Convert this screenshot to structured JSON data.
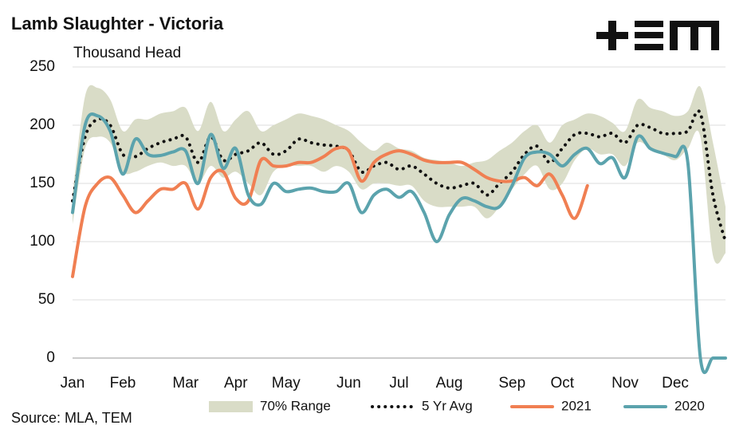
{
  "chart_data": {
    "type": "line",
    "title": "Lamb Slaughter - Victoria",
    "subtitle": "Thousand Head",
    "source": "Source: MLA, TEM",
    "categories": [
      "Jan",
      null,
      null,
      null,
      "Feb",
      null,
      null,
      null,
      null,
      "Mar",
      null,
      null,
      null,
      "Apr",
      null,
      null,
      null,
      "May",
      null,
      null,
      null,
      null,
      "Jun",
      null,
      null,
      null,
      "Jul",
      null,
      null,
      null,
      "Aug",
      null,
      null,
      null,
      null,
      "Sep",
      null,
      null,
      null,
      "Oct",
      null,
      null,
      null,
      null,
      "Nov",
      null,
      null,
      null,
      "Dec",
      null,
      null,
      null,
      null
    ],
    "ylim": [
      0,
      250
    ],
    "yticks": [
      0,
      50,
      100,
      150,
      200,
      250
    ],
    "grid": true,
    "legend": "bottom",
    "series": [
      {
        "name": "70% Range",
        "color": "#d9dcc7",
        "style": "band",
        "low": [
          115,
          180,
          190,
          185,
          160,
          160,
          165,
          168,
          165,
          165,
          150,
          165,
          155,
          160,
          150,
          140,
          160,
          165,
          165,
          165,
          160,
          165,
          160,
          145,
          150,
          150,
          148,
          148,
          135,
          130,
          130,
          130,
          130,
          120,
          130,
          145,
          158,
          165,
          145,
          150,
          170,
          180,
          175,
          175,
          165,
          185,
          180,
          175,
          170,
          180,
          190,
          88,
          90
        ],
        "high": [
          140,
          225,
          232,
          222,
          195,
          205,
          205,
          210,
          212,
          215,
          195,
          220,
          195,
          205,
          212,
          195,
          200,
          205,
          210,
          208,
          205,
          200,
          195,
          185,
          178,
          185,
          180,
          178,
          172,
          170,
          168,
          165,
          168,
          170,
          178,
          185,
          195,
          200,
          185,
          200,
          205,
          210,
          208,
          202,
          195,
          222,
          215,
          212,
          208,
          212,
          233,
          185,
          130
        ]
      },
      {
        "name": "5 Yr Avg",
        "color": "#111111",
        "style": "dotted",
        "values": [
          135,
          190,
          205,
          200,
          175,
          173,
          180,
          185,
          188,
          190,
          168,
          190,
          170,
          175,
          178,
          185,
          175,
          178,
          188,
          185,
          183,
          182,
          178,
          160,
          165,
          168,
          162,
          165,
          158,
          150,
          146,
          148,
          150,
          140,
          150,
          160,
          175,
          182,
          168,
          180,
          192,
          193,
          190,
          193,
          185,
          200,
          198,
          193,
          193,
          195,
          210,
          140,
          100
        ]
      },
      {
        "name": "2021",
        "color": "#f07f52",
        "style": "solid",
        "values": [
          70,
          130,
          150,
          155,
          140,
          125,
          135,
          145,
          145,
          150,
          128,
          155,
          160,
          137,
          135,
          170,
          165,
          165,
          168,
          168,
          173,
          180,
          178,
          152,
          168,
          175,
          178,
          175,
          170,
          168,
          168,
          168,
          162,
          155,
          152,
          152,
          155,
          148,
          158,
          140,
          120,
          148,
          null,
          null,
          null,
          null,
          null,
          null,
          null,
          null,
          null,
          null,
          null
        ]
      },
      {
        "name": "2020",
        "color": "#5ba3ad",
        "style": "solid",
        "values": [
          125,
          200,
          208,
          195,
          158,
          188,
          175,
          174,
          177,
          178,
          150,
          192,
          163,
          180,
          140,
          132,
          150,
          143,
          145,
          146,
          143,
          143,
          150,
          125,
          140,
          145,
          138,
          143,
          125,
          100,
          123,
          137,
          135,
          130,
          130,
          148,
          172,
          177,
          175,
          165,
          175,
          180,
          167,
          172,
          155,
          190,
          180,
          176,
          173,
          168,
          0,
          0,
          0
        ]
      }
    ]
  }
}
